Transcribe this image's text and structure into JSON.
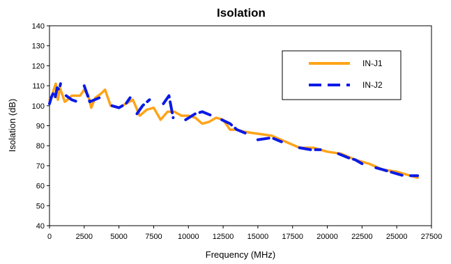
{
  "chart_data": {
    "type": "line",
    "title": "Isolation",
    "xlabel": "Frequency (MHz)",
    "ylabel": "Isolation  (dB)",
    "xlim": [
      0,
      27500
    ],
    "ylim": [
      40,
      140
    ],
    "xticks": [
      "0",
      "2500",
      "5000",
      "7500",
      "10000",
      "12500",
      "15000",
      "17500",
      "20000",
      "22500",
      "25000",
      "27500"
    ],
    "yticks": [
      "40",
      "50",
      "60",
      "70",
      "80",
      "90",
      "100",
      "110",
      "120",
      "130",
      "140"
    ],
    "grid": false,
    "legend_position": "top-right",
    "series": [
      {
        "name": "IN-J1",
        "color": "#FFA319",
        "dash": "solid",
        "points": [
          [
            0,
            103
          ],
          [
            150,
            104
          ],
          [
            300,
            108
          ],
          [
            450,
            111
          ],
          [
            600,
            103
          ],
          [
            750,
            109
          ],
          [
            1000,
            104
          ],
          [
            1100,
            102
          ],
          [
            1300,
            103
          ],
          [
            1600,
            105
          ],
          [
            2200,
            105
          ],
          [
            2500,
            108
          ],
          [
            2800,
            105
          ],
          [
            3000,
            99
          ],
          [
            3300,
            104
          ],
          [
            3700,
            106
          ],
          [
            4000,
            108
          ],
          [
            4400,
            100
          ],
          [
            5000,
            99
          ],
          [
            5500,
            101
          ],
          [
            6000,
            103
          ],
          [
            6500,
            95
          ],
          [
            7000,
            98
          ],
          [
            7500,
            99
          ],
          [
            8000,
            93
          ],
          [
            8500,
            97
          ],
          [
            9000,
            97
          ],
          [
            9500,
            95
          ],
          [
            10000,
            95
          ],
          [
            10500,
            94
          ],
          [
            11000,
            91
          ],
          [
            11500,
            92
          ],
          [
            12000,
            94
          ],
          [
            12500,
            93
          ],
          [
            13000,
            88
          ],
          [
            13500,
            88
          ],
          [
            14000,
            87
          ],
          [
            15000,
            86
          ],
          [
            16000,
            85
          ],
          [
            17000,
            82
          ],
          [
            18000,
            79
          ],
          [
            19000,
            79
          ],
          [
            20000,
            77
          ],
          [
            21000,
            76
          ],
          [
            22000,
            73
          ],
          [
            23000,
            71
          ],
          [
            24000,
            68
          ],
          [
            25000,
            67
          ],
          [
            26000,
            65
          ],
          [
            26500,
            64
          ]
        ]
      },
      {
        "name": "IN-J2",
        "color": "#0A1AE6",
        "dash": "dashed",
        "segments": [
          [
            [
              0,
              101
            ],
            [
              120,
              104
            ],
            [
              250,
              106
            ],
            [
              400,
              104
            ],
            [
              550,
              109
            ],
            [
              700,
              108
            ],
            [
              800,
              111
            ]
          ],
          [
            [
              1200,
              105
            ],
            [
              1600,
              103
            ],
            [
              2000,
              102
            ]
          ],
          [
            [
              2500,
              110
            ],
            [
              2900,
              102
            ],
            [
              3600,
              104
            ]
          ],
          [
            [
              4500,
              100
            ],
            [
              5000,
              99
            ],
            [
              5500,
              101
            ],
            [
              5800,
              104
            ]
          ],
          [
            [
              6300,
              96
            ],
            [
              6700,
              100
            ],
            [
              7200,
              103
            ]
          ],
          [
            [
              8200,
              101
            ],
            [
              8600,
              105
            ],
            [
              8900,
              94
            ]
          ],
          [
            [
              9800,
              93
            ],
            [
              10500,
              96
            ],
            [
              11000,
              97
            ],
            [
              11700,
              95
            ]
          ],
          [
            [
              12400,
              93
            ],
            [
              13000,
              91
            ],
            [
              13500,
              88
            ],
            [
              14200,
              86
            ]
          ],
          [
            [
              15000,
              83
            ],
            [
              16000,
              84
            ],
            [
              16700,
              82
            ]
          ],
          [
            [
              18000,
              79
            ],
            [
              18800,
              78
            ],
            [
              19500,
              78
            ]
          ],
          [
            [
              20800,
              76
            ],
            [
              21500,
              74
            ],
            [
              22000,
              73
            ],
            [
              22500,
              71
            ]
          ],
          [
            [
              23500,
              69
            ],
            [
              24000,
              68
            ],
            [
              25000,
              66
            ],
            [
              25500,
              65
            ]
          ],
          [
            [
              26000,
              65
            ],
            [
              26500,
              65
            ]
          ]
        ]
      }
    ]
  }
}
